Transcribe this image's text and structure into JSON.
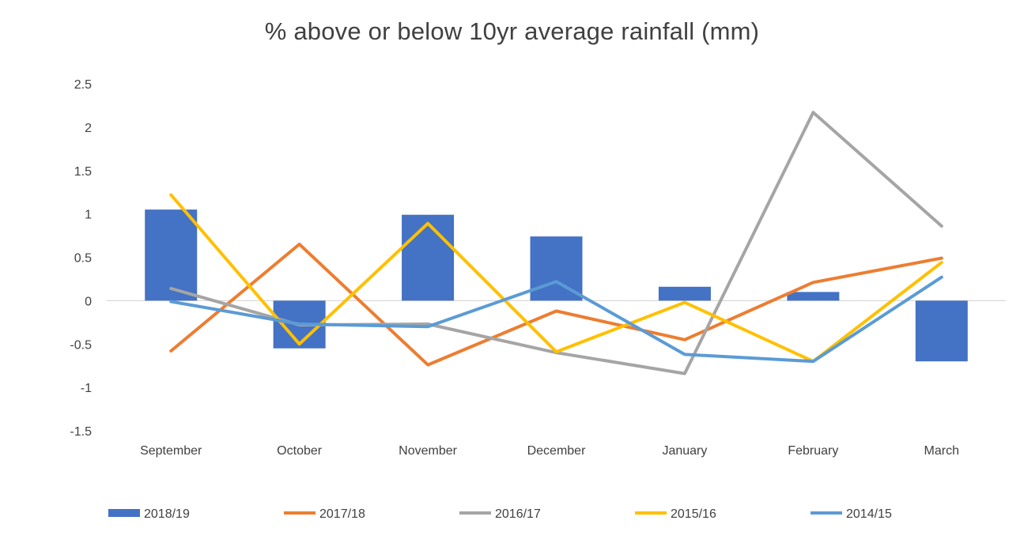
{
  "chart_data": {
    "type": "bar",
    "title": "% above or below 10yr average rainfall (mm)",
    "xlabel": "",
    "ylabel": "",
    "categories": [
      "September",
      "October",
      "November",
      "December",
      "January",
      "February",
      "March"
    ],
    "ylim": [
      -1.5,
      2.5
    ],
    "y_ticks": [
      2.5,
      2,
      1.5,
      1,
      0.5,
      0,
      -0.5,
      -1,
      -1.5
    ],
    "y_tick_labels": [
      "2.5",
      "2",
      "1.5",
      "1",
      "0.5",
      "0",
      "-0.5",
      "-1",
      "-1.5"
    ],
    "grid": false,
    "legend_position": "bottom",
    "bars": {
      "name": "2018/19",
      "color": "#4472C4",
      "values": [
        1.05,
        -0.55,
        0.99,
        0.74,
        0.16,
        0.1,
        -0.7
      ]
    },
    "series": [
      {
        "name": "2017/18",
        "type": "line",
        "color": "#ED7D31",
        "values": [
          -0.58,
          0.65,
          -0.74,
          -0.12,
          -0.45,
          0.21,
          0.49
        ]
      },
      {
        "name": "2016/17",
        "type": "line",
        "color": "#A5A5A5",
        "values": [
          0.14,
          -0.28,
          -0.27,
          -0.6,
          -0.84,
          2.17,
          0.86
        ]
      },
      {
        "name": "2015/16",
        "type": "line",
        "color": "#FFC000",
        "values": [
          1.22,
          -0.5,
          0.89,
          -0.59,
          -0.02,
          -0.7,
          0.44
        ]
      },
      {
        "name": "2014/15",
        "type": "line",
        "color": "#5B9BD5",
        "values": [
          -0.01,
          -0.27,
          -0.3,
          0.22,
          -0.62,
          -0.7,
          0.27
        ]
      }
    ]
  }
}
